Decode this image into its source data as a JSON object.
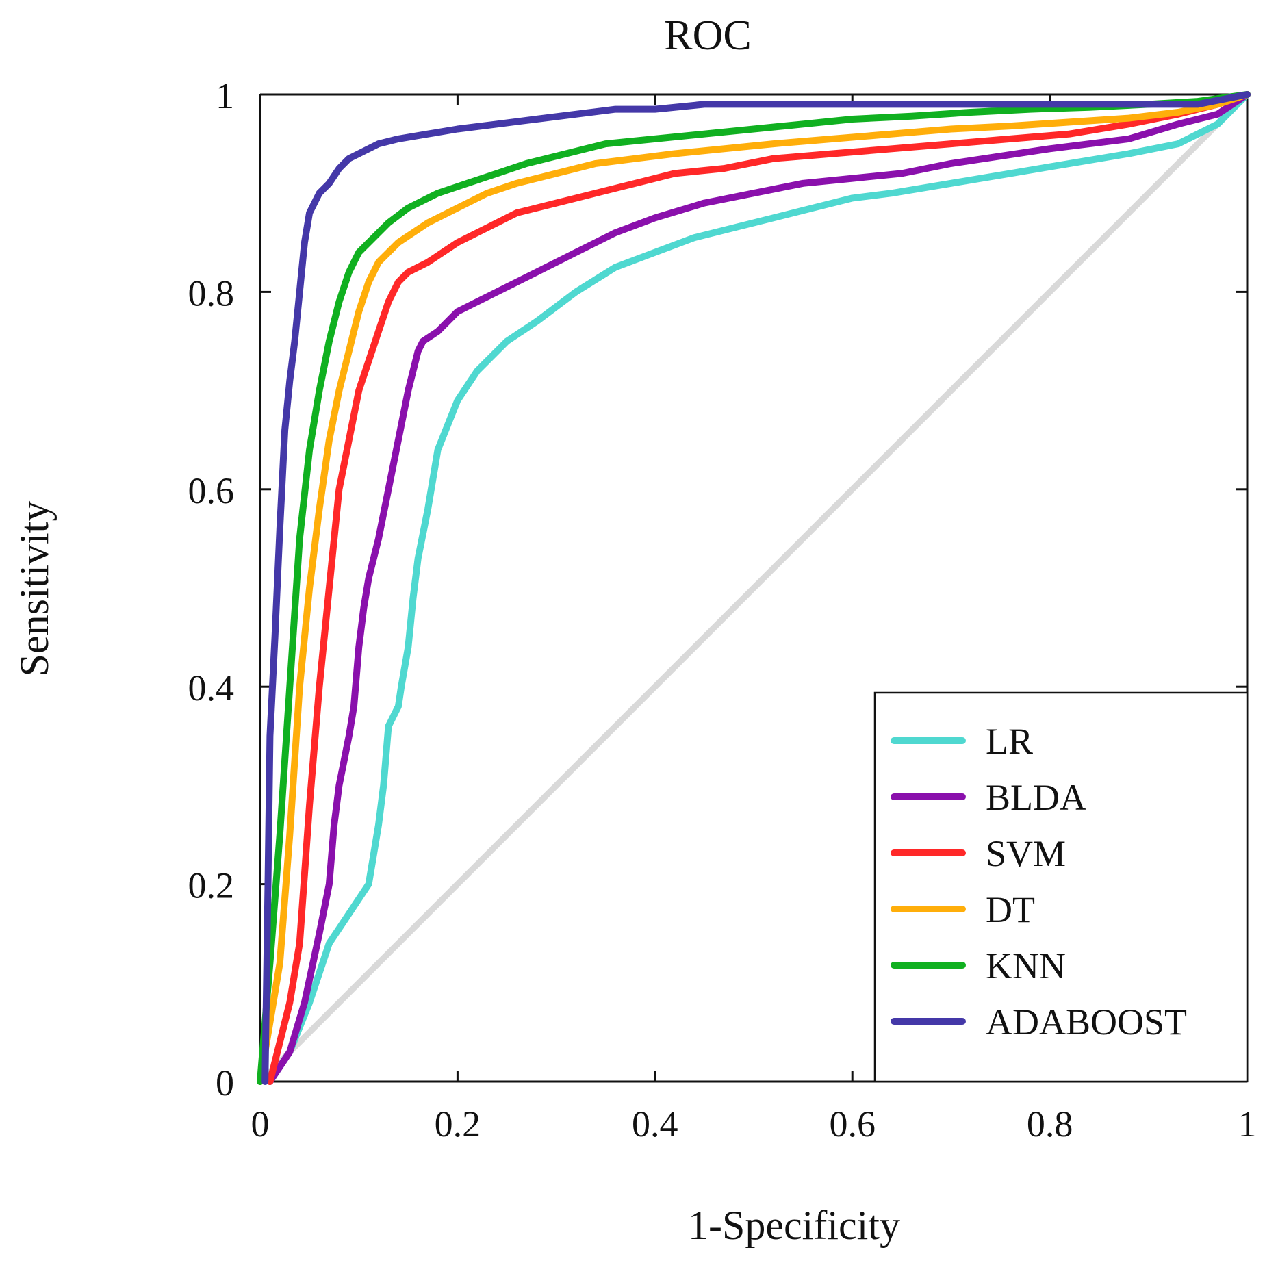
{
  "chart_data": {
    "type": "line",
    "title": "ROC",
    "xlabel": "1-Specificity",
    "ylabel": "Sensitivity",
    "xlim": [
      0,
      1
    ],
    "ylim": [
      0,
      1
    ],
    "grid": false,
    "legend_position": "bottom-right",
    "x_tick_labels": [
      "0",
      "0.2",
      "0.4",
      "0.6",
      "0.8",
      "1"
    ],
    "y_tick_labels": [
      "0",
      "0.2",
      "0.4",
      "0.6",
      "0.8",
      "1"
    ],
    "reference_line": {
      "name": "chance",
      "color": "#d9d9d9",
      "x": [
        0,
        1
      ],
      "y": [
        0,
        1
      ]
    },
    "series": [
      {
        "name": "LR",
        "color": "#4fd8d0",
        "x": [
          0.01,
          0.03,
          0.05,
          0.07,
          0.09,
          0.11,
          0.12,
          0.125,
          0.13,
          0.14,
          0.143,
          0.15,
          0.155,
          0.16,
          0.17,
          0.18,
          0.2,
          0.22,
          0.25,
          0.28,
          0.32,
          0.36,
          0.4,
          0.44,
          0.48,
          0.52,
          0.56,
          0.6,
          0.64,
          0.7,
          0.76,
          0.82,
          0.88,
          0.93,
          0.97,
          1.0
        ],
        "y": [
          0.0,
          0.03,
          0.08,
          0.14,
          0.17,
          0.2,
          0.26,
          0.3,
          0.36,
          0.38,
          0.4,
          0.44,
          0.49,
          0.53,
          0.58,
          0.64,
          0.69,
          0.72,
          0.75,
          0.77,
          0.8,
          0.825,
          0.84,
          0.855,
          0.865,
          0.875,
          0.885,
          0.895,
          0.9,
          0.91,
          0.92,
          0.93,
          0.94,
          0.95,
          0.97,
          1.0
        ]
      },
      {
        "name": "BLDA",
        "color": "#8a10ac",
        "x": [
          0.01,
          0.03,
          0.045,
          0.06,
          0.07,
          0.075,
          0.08,
          0.09,
          0.095,
          0.1,
          0.105,
          0.11,
          0.12,
          0.13,
          0.14,
          0.15,
          0.16,
          0.165,
          0.18,
          0.2,
          0.24,
          0.28,
          0.32,
          0.36,
          0.4,
          0.45,
          0.5,
          0.55,
          0.6,
          0.65,
          0.7,
          0.8,
          0.88,
          0.93,
          0.97,
          1.0
        ],
        "y": [
          0.0,
          0.03,
          0.08,
          0.15,
          0.2,
          0.26,
          0.3,
          0.35,
          0.38,
          0.44,
          0.48,
          0.51,
          0.55,
          0.6,
          0.65,
          0.7,
          0.74,
          0.75,
          0.76,
          0.78,
          0.8,
          0.82,
          0.84,
          0.86,
          0.875,
          0.89,
          0.9,
          0.91,
          0.915,
          0.92,
          0.93,
          0.945,
          0.955,
          0.97,
          0.98,
          1.0
        ]
      },
      {
        "name": "SVM",
        "color": "#ff2828",
        "x": [
          0.01,
          0.03,
          0.04,
          0.05,
          0.06,
          0.065,
          0.07,
          0.08,
          0.09,
          0.1,
          0.11,
          0.12,
          0.13,
          0.14,
          0.15,
          0.17,
          0.2,
          0.23,
          0.26,
          0.3,
          0.34,
          0.38,
          0.42,
          0.47,
          0.52,
          0.58,
          0.64,
          0.7,
          0.76,
          0.82,
          0.88,
          0.93,
          0.97,
          1.0
        ],
        "y": [
          0.0,
          0.08,
          0.14,
          0.28,
          0.4,
          0.45,
          0.5,
          0.6,
          0.65,
          0.7,
          0.73,
          0.76,
          0.79,
          0.81,
          0.82,
          0.83,
          0.85,
          0.865,
          0.88,
          0.89,
          0.9,
          0.91,
          0.92,
          0.925,
          0.935,
          0.94,
          0.945,
          0.95,
          0.955,
          0.96,
          0.97,
          0.98,
          0.99,
          1.0
        ]
      },
      {
        "name": "DT",
        "color": "#ffae0a",
        "x": [
          0.0,
          0.02,
          0.03,
          0.04,
          0.05,
          0.06,
          0.07,
          0.08,
          0.09,
          0.1,
          0.11,
          0.12,
          0.14,
          0.17,
          0.2,
          0.23,
          0.26,
          0.3,
          0.34,
          0.38,
          0.42,
          0.47,
          0.52,
          0.58,
          0.64,
          0.7,
          0.76,
          0.82,
          0.88,
          0.93,
          0.97,
          1.0
        ],
        "y": [
          0.0,
          0.12,
          0.25,
          0.4,
          0.5,
          0.58,
          0.65,
          0.7,
          0.74,
          0.78,
          0.81,
          0.83,
          0.85,
          0.87,
          0.885,
          0.9,
          0.91,
          0.92,
          0.93,
          0.935,
          0.94,
          0.945,
          0.95,
          0.955,
          0.96,
          0.965,
          0.968,
          0.972,
          0.976,
          0.982,
          0.99,
          1.0
        ]
      },
      {
        "name": "KNN",
        "color": "#10b020",
        "x": [
          0.0,
          0.01,
          0.02,
          0.03,
          0.04,
          0.05,
          0.06,
          0.07,
          0.08,
          0.09,
          0.1,
          0.11,
          0.13,
          0.15,
          0.18,
          0.21,
          0.24,
          0.27,
          0.31,
          0.35,
          0.4,
          0.45,
          0.5,
          0.55,
          0.6,
          0.66,
          0.72,
          0.78,
          0.84,
          0.9,
          0.95,
          1.0
        ],
        "y": [
          0.0,
          0.12,
          0.25,
          0.4,
          0.55,
          0.64,
          0.7,
          0.75,
          0.79,
          0.82,
          0.84,
          0.85,
          0.87,
          0.885,
          0.9,
          0.91,
          0.92,
          0.93,
          0.94,
          0.95,
          0.955,
          0.96,
          0.965,
          0.97,
          0.975,
          0.978,
          0.982,
          0.985,
          0.987,
          0.99,
          0.993,
          1.0
        ]
      },
      {
        "name": "ADABOOST",
        "color": "#4438a8",
        "x": [
          0.005,
          0.008,
          0.01,
          0.015,
          0.02,
          0.025,
          0.03,
          0.035,
          0.04,
          0.045,
          0.05,
          0.06,
          0.07,
          0.08,
          0.09,
          0.1,
          0.12,
          0.14,
          0.17,
          0.2,
          0.24,
          0.28,
          0.32,
          0.36,
          0.4,
          0.45,
          0.5,
          0.55,
          0.6,
          0.65,
          0.7,
          0.8,
          0.9,
          0.95,
          1.0
        ],
        "y": [
          0.0,
          0.2,
          0.35,
          0.45,
          0.56,
          0.66,
          0.71,
          0.75,
          0.8,
          0.85,
          0.88,
          0.9,
          0.91,
          0.925,
          0.935,
          0.94,
          0.95,
          0.955,
          0.96,
          0.965,
          0.97,
          0.975,
          0.98,
          0.985,
          0.985,
          0.99,
          0.99,
          0.99,
          0.99,
          0.99,
          0.99,
          0.99,
          0.99,
          0.99,
          1.0
        ]
      }
    ]
  }
}
